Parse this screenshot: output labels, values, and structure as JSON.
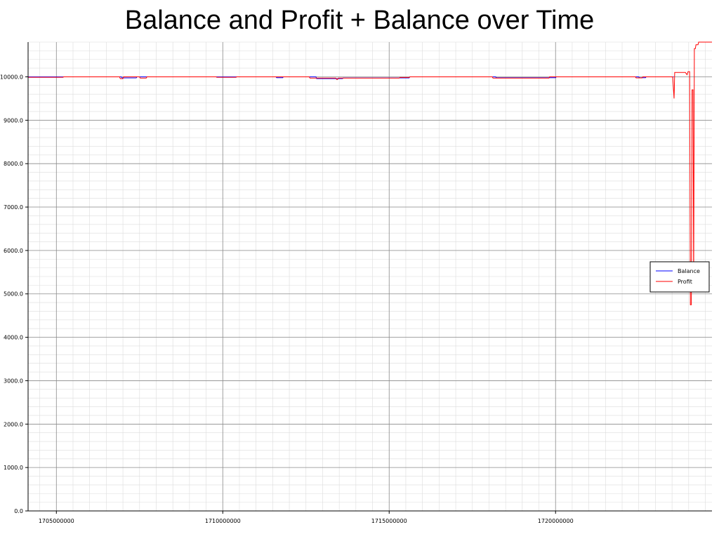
{
  "chart_data": {
    "type": "line",
    "title": "Balance and Profit + Balance over Time",
    "xlabel": "",
    "ylabel": "",
    "xlim": [
      1704150000,
      1724700000
    ],
    "ylim": [
      0,
      10800
    ],
    "x_ticks": [
      1705000000,
      1710000000,
      1715000000,
      1720000000
    ],
    "x_tick_labels": [
      "1705000000",
      "1710000000",
      "1715000000",
      "1720000000"
    ],
    "y_ticks": [
      0,
      1000,
      2000,
      3000,
      4000,
      5000,
      6000,
      7000,
      8000,
      9000,
      10000
    ],
    "y_tick_labels": [
      "0.0",
      "1000.0",
      "2000.0",
      "3000.0",
      "4000.0",
      "5000.0",
      "6000.0",
      "7000.0",
      "8000.0",
      "9000.0",
      "10000.0"
    ],
    "grid": true,
    "legend_position": "right",
    "series": [
      {
        "name": "Balance",
        "color": "#0000ff",
        "points": [
          [
            1704150000,
            10000
          ],
          [
            1706950000,
            10000
          ],
          [
            1706980000,
            9975
          ],
          [
            1707400000,
            9975
          ],
          [
            1707420000,
            10000
          ],
          [
            1708500000,
            10000
          ],
          [
            1710000000,
            10000
          ],
          [
            1711600000,
            10000
          ],
          [
            1711620000,
            9980
          ],
          [
            1711800000,
            9980
          ],
          [
            1711820000,
            10000
          ],
          [
            1712800000,
            10000
          ],
          [
            1712820000,
            9960
          ],
          [
            1713600000,
            9960
          ],
          [
            1713620000,
            9975
          ],
          [
            1715600000,
            9975
          ],
          [
            1715620000,
            10000
          ],
          [
            1718200000,
            10000
          ],
          [
            1718220000,
            9980
          ],
          [
            1720000000,
            9980
          ],
          [
            1720020000,
            10000
          ],
          [
            1722500000,
            10000
          ],
          [
            1722520000,
            9980
          ],
          [
            1722700000,
            9980
          ],
          [
            1722720000,
            10000
          ],
          [
            1723550000,
            10000
          ]
        ]
      },
      {
        "name": "Profit",
        "color": "#ff0000",
        "points": [
          [
            1704150000,
            9990
          ],
          [
            1705200000,
            9990
          ],
          [
            1705220000,
            10000
          ],
          [
            1706900000,
            10000
          ],
          [
            1706920000,
            9960
          ],
          [
            1707000000,
            9960
          ],
          [
            1707020000,
            10000
          ],
          [
            1707500000,
            10000
          ],
          [
            1707520000,
            9970
          ],
          [
            1707700000,
            9970
          ],
          [
            1707720000,
            10000
          ],
          [
            1709800000,
            10000
          ],
          [
            1709820000,
            9990
          ],
          [
            1710400000,
            9990
          ],
          [
            1710420000,
            10000
          ],
          [
            1712600000,
            10000
          ],
          [
            1712620000,
            9970
          ],
          [
            1713400000,
            9970
          ],
          [
            1713420000,
            9940
          ],
          [
            1713450000,
            9940
          ],
          [
            1713470000,
            9970
          ],
          [
            1715300000,
            9970
          ],
          [
            1715320000,
            9985
          ],
          [
            1715600000,
            9985
          ],
          [
            1715620000,
            10000
          ],
          [
            1718100000,
            10000
          ],
          [
            1718120000,
            9970
          ],
          [
            1719800000,
            9970
          ],
          [
            1719820000,
            10000
          ],
          [
            1722400000,
            10000
          ],
          [
            1722420000,
            9975
          ],
          [
            1722600000,
            9975
          ],
          [
            1722620000,
            10000
          ],
          [
            1723500000,
            10000
          ],
          [
            1723520000,
            10000
          ],
          [
            1723560000,
            9500
          ],
          [
            1723580000,
            10100
          ],
          [
            1723900000,
            10100
          ],
          [
            1723950000,
            10050
          ],
          [
            1723980000,
            10120
          ],
          [
            1724030000,
            10120
          ],
          [
            1724050000,
            4750
          ],
          [
            1724080000,
            4750
          ],
          [
            1724100000,
            9700
          ],
          [
            1724130000,
            9700
          ],
          [
            1724150000,
            5200
          ],
          [
            1724170000,
            10650
          ],
          [
            1724200000,
            10650
          ],
          [
            1724220000,
            10740
          ],
          [
            1724280000,
            10740
          ],
          [
            1724300000,
            10800
          ],
          [
            1724700000,
            10800
          ]
        ]
      }
    ]
  }
}
